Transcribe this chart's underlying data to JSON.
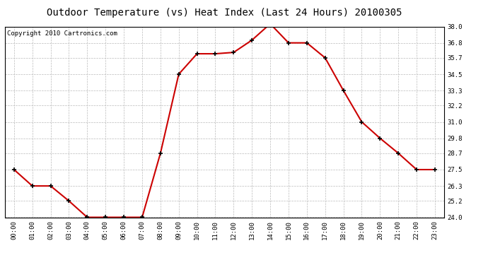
{
  "title": "Outdoor Temperature (vs) Heat Index (Last 24 Hours) 20100305",
  "copyright": "Copyright 2010 Cartronics.com",
  "x_labels": [
    "00:00",
    "01:00",
    "02:00",
    "03:00",
    "04:00",
    "05:00",
    "06:00",
    "07:00",
    "08:00",
    "09:00",
    "10:00",
    "11:00",
    "12:00",
    "13:00",
    "14:00",
    "15:00",
    "16:00",
    "17:00",
    "18:00",
    "19:00",
    "20:00",
    "21:00",
    "22:00",
    "23:00"
  ],
  "y_values": [
    27.5,
    26.3,
    26.3,
    25.2,
    24.0,
    24.0,
    24.0,
    24.0,
    28.7,
    34.5,
    36.0,
    36.0,
    36.1,
    37.0,
    38.2,
    36.8,
    36.8,
    35.7,
    33.3,
    31.0,
    29.8,
    28.7,
    27.5,
    27.5
  ],
  "y_min": 24.0,
  "y_max": 38.0,
  "y_ticks": [
    24.0,
    25.2,
    26.3,
    27.5,
    28.7,
    29.8,
    31.0,
    32.2,
    33.3,
    34.5,
    35.7,
    36.8,
    38.0
  ],
  "line_color": "#cc0000",
  "marker": "+",
  "marker_color": "#000000",
  "bg_color": "#ffffff",
  "grid_color": "#bbbbbb",
  "title_fontsize": 10,
  "copyright_fontsize": 6.5
}
